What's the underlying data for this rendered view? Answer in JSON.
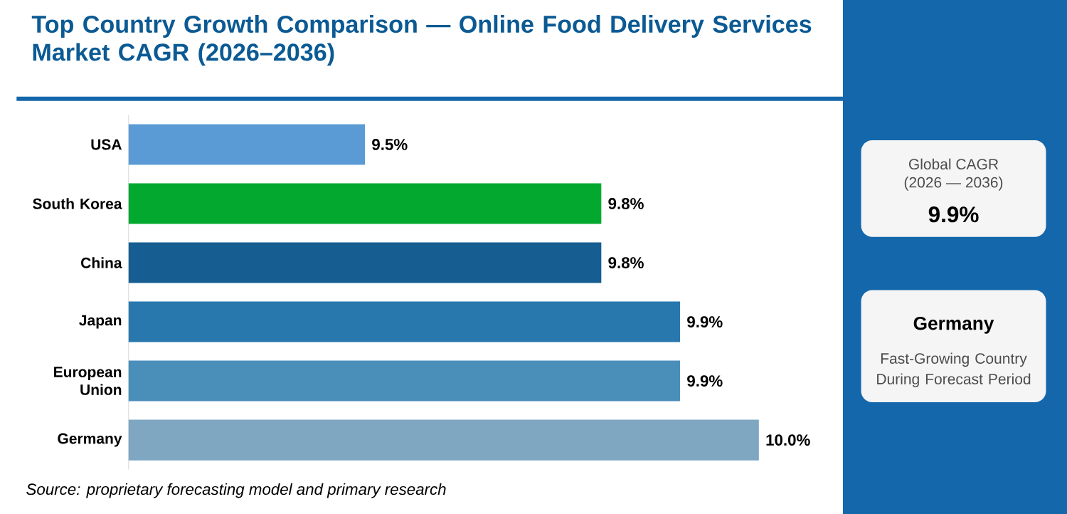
{
  "chart_data": {
    "type": "bar",
    "orientation": "horizontal",
    "title": "Top Country Growth Comparison — Online Food Delivery Services Market CAGR (2026–2036)",
    "categories": [
      "USA",
      "South Korea",
      "China",
      "Japan",
      "European Union",
      "Germany"
    ],
    "values": [
      9.5,
      9.8,
      9.8,
      9.9,
      9.9,
      10.0
    ],
    "colors": [
      "#5b9bd5",
      "#03a92f",
      "#165e91",
      "#2878ae",
      "#4a8eba",
      "#7fa7c2"
    ],
    "value_labels": [
      "9.5%",
      "9.8%",
      "9.8%",
      "9.9%",
      "9.9%",
      "10.0%"
    ],
    "xlim": [
      9.2,
      10.0
    ],
    "tick_labels": "y",
    "annotations": [
      "Source: proprietary forecasting model and primary research",
      "Global CAGR",
      "(2026 — 2036)",
      "9.9%",
      "Germany",
      "Fast-Growing Country During Forecast Period"
    ]
  }
}
